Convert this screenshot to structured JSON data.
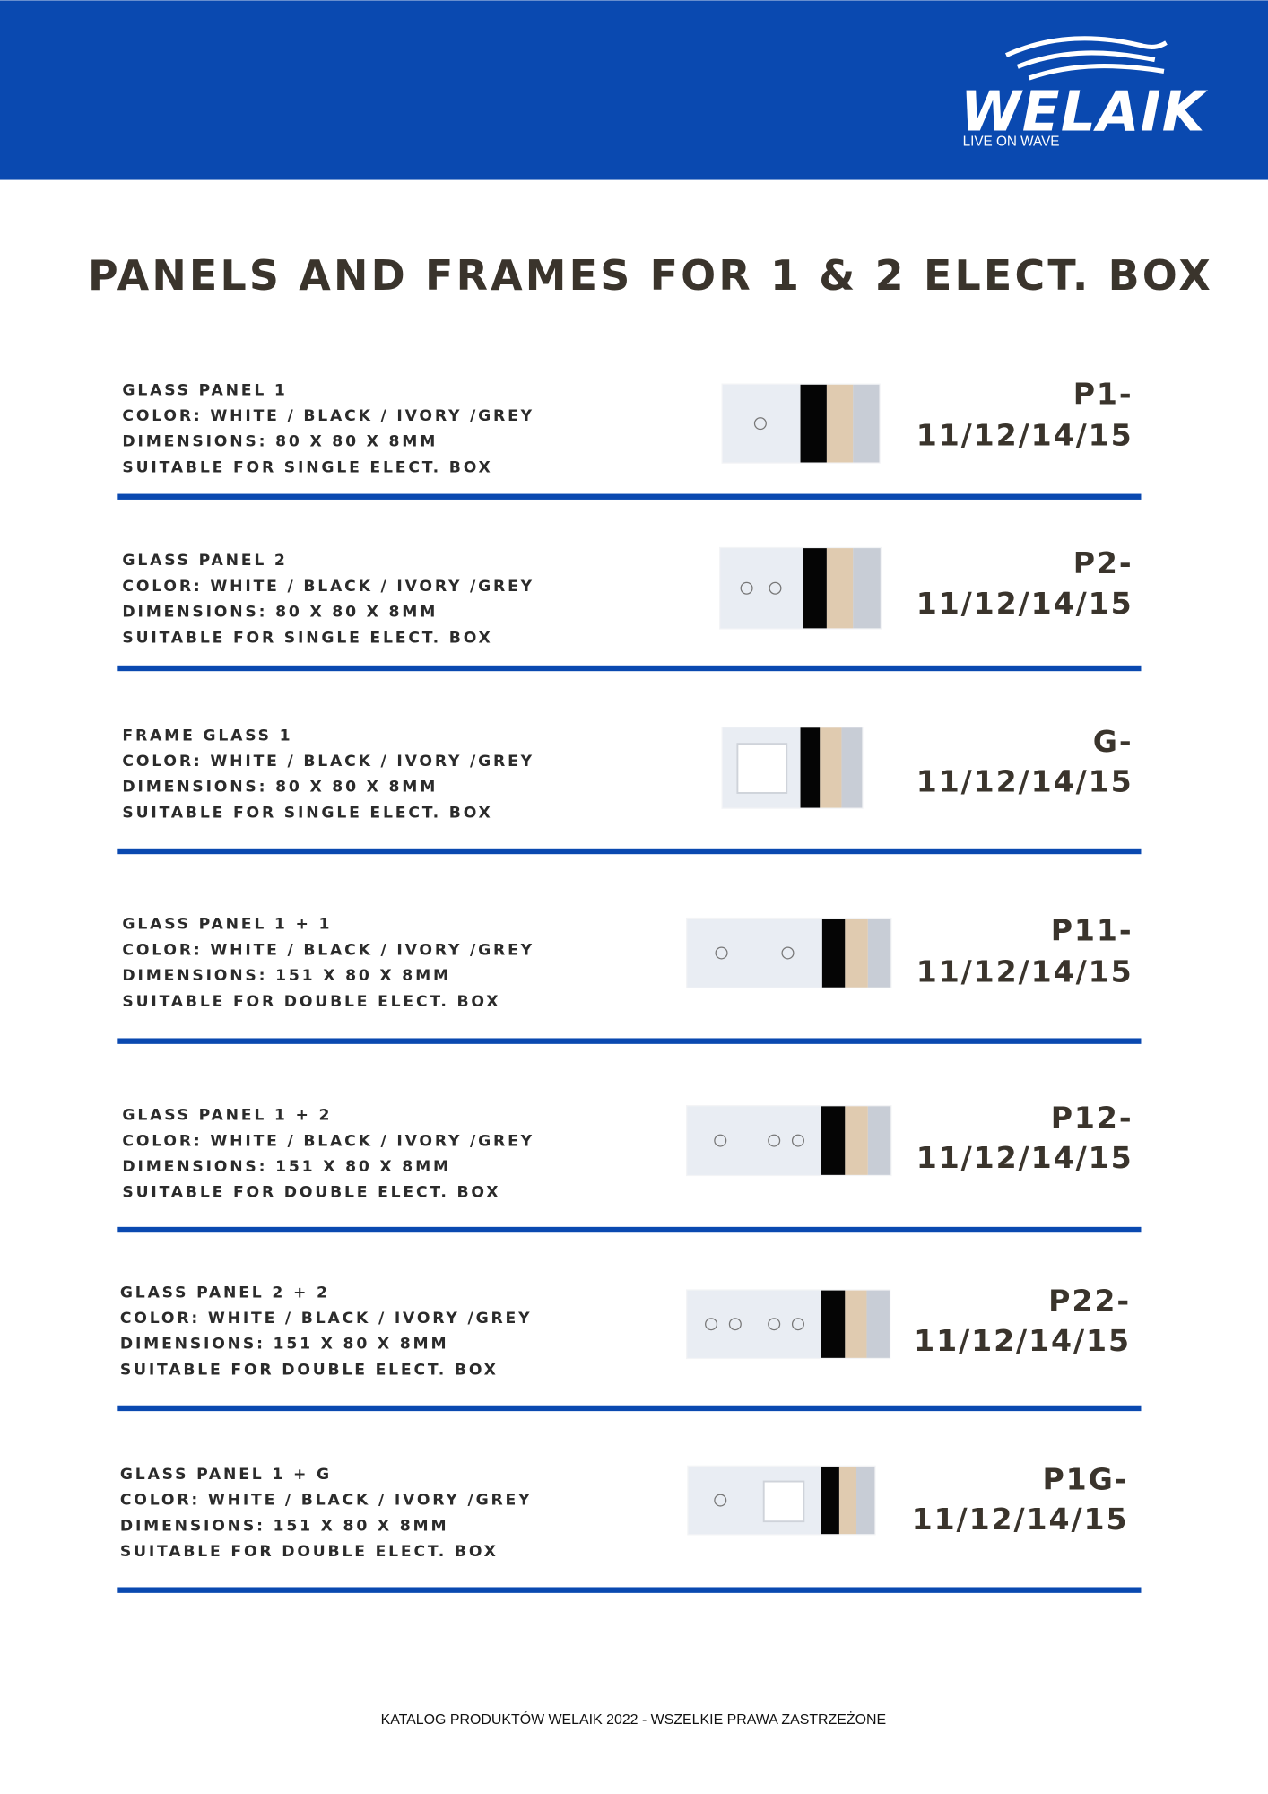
{
  "header": {
    "logo": "WELAIK",
    "tagline": "LIVE ON WAVE"
  },
  "title": "PANELS AND FRAMES FOR 1 & 2 ELECT. BOX",
  "items": [
    {
      "name": "GLASS PANEL 1",
      "color": "COLOR: WHITE / BLACK / IVORY /GREY",
      "dimensions": "DIMENSIONS: 80 X 80 X 8MM",
      "suitable": "SUITABLE FOR SINGLE ELECT. BOX",
      "code": [
        "P1-",
        "11/12/14/15"
      ]
    },
    {
      "name": "GLASS PANEL 2",
      "color": "COLOR: WHITE / BLACK / IVORY /GREY",
      "dimensions": "DIMENSIONS: 80 X 80 X 8MM",
      "suitable": "SUITABLE FOR SINGLE ELECT. BOX",
      "code": [
        "P2-",
        "11/12/14/15"
      ]
    },
    {
      "name": "FRAME GLASS 1",
      "color": "COLOR: WHITE / BLACK / IVORY /GREY",
      "dimensions": "DIMENSIONS: 80 X 80 X 8MM",
      "suitable": "SUITABLE FOR SINGLE ELECT. BOX",
      "code": [
        "G-",
        "11/12/14/15"
      ]
    },
    {
      "name": "GLASS PANEL 1 + 1",
      "color": "COLOR: WHITE / BLACK / IVORY /GREY",
      "dimensions": "DIMENSIONS: 151 X 80 X 8MM",
      "suitable": "SUITABLE FOR DOUBLE ELECT. BOX",
      "code": [
        "P11-",
        "11/12/14/15"
      ]
    },
    {
      "name": "GLASS PANEL 1 + 2",
      "color": "COLOR: WHITE / BLACK / IVORY /GREY",
      "dimensions": "DIMENSIONS: 151 X 80 X 8MM",
      "suitable": "SUITABLE FOR DOUBLE ELECT. BOX",
      "code": [
        "P12-",
        "11/12/14/15"
      ]
    },
    {
      "name": "GLASS PANEL 2 + 2",
      "color": "COLOR: WHITE / BLACK / IVORY /GREY",
      "dimensions": "DIMENSIONS: 151 X 80 X 8MM",
      "suitable": "SUITABLE FOR DOUBLE ELECT. BOX",
      "code": [
        "P22-",
        "11/12/14/15"
      ]
    },
    {
      "name": "GLASS PANEL 1 + G",
      "color": "COLOR: WHITE / BLACK / IVORY /GREY",
      "dimensions": "DIMENSIONS: 151 X 80 X 8MM",
      "suitable": "SUITABLE FOR DOUBLE ELECT. BOX",
      "code": [
        "P1G-",
        "11/12/14/15"
      ]
    }
  ],
  "footer": "KATALOG PRODUKTÓW WELAIK 2022 - WSZELKIE PRAWA ZASTRZEŻONE"
}
